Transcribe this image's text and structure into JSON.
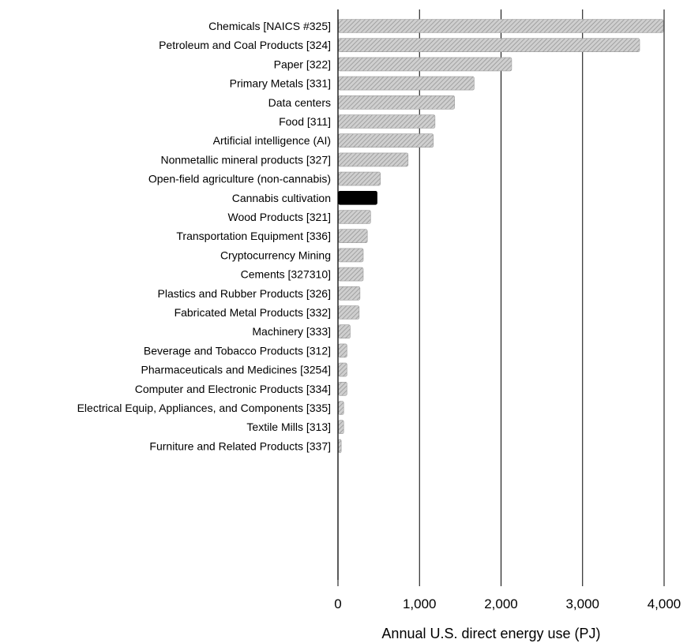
{
  "chart_data": {
    "type": "bar",
    "orientation": "horizontal",
    "categories": [
      "Chemicals [NAICS #325]",
      "Petroleum and Coal Products [324]",
      "Paper [322]",
      "Primary Metals [331]",
      "Data centers",
      "Food [311]",
      "Artificial intelligence (AI)",
      "Nonmetallic mineral products [327]",
      "Open-field agriculture (non-cannabis)",
      "Cannabis cultivation",
      "Wood Products [321]",
      "Transportation Equipment [336]",
      "Cryptocurrency Mining",
      "Cements [327310]",
      "Plastics and Rubber Products [326]",
      "Fabricated Metal Products [332]",
      "Machinery [333]",
      "Beverage and Tobacco Products [312]",
      "Pharmaceuticals and Medicines [3254]",
      "Computer and Electronic Products [334]",
      "Electrical Equip, Appliances, and Components [335]",
      "Textile Mills [313]",
      "Furniture and Related Products [337]"
    ],
    "values": [
      3990,
      3700,
      2130,
      1670,
      1430,
      1190,
      1170,
      860,
      520,
      480,
      400,
      360,
      310,
      310,
      270,
      260,
      150,
      110,
      110,
      110,
      70,
      70,
      40
    ],
    "highlight_category": "Cannabis cultivation",
    "colors": {
      "bar": "#c8c8c8",
      "bar_hatch": "#9a9a9a",
      "highlight": "#000000",
      "grid": "#000000"
    },
    "xlim": [
      0,
      4000
    ],
    "xticks": [
      0,
      1000,
      2000,
      3000,
      4000
    ],
    "xtick_labels": [
      "0",
      "1,000",
      "2,000",
      "3,000",
      "4,000"
    ],
    "xlabel": "Annual U.S. direct energy use (PJ)",
    "ylabel": "",
    "title": "",
    "grid": "vertical"
  }
}
